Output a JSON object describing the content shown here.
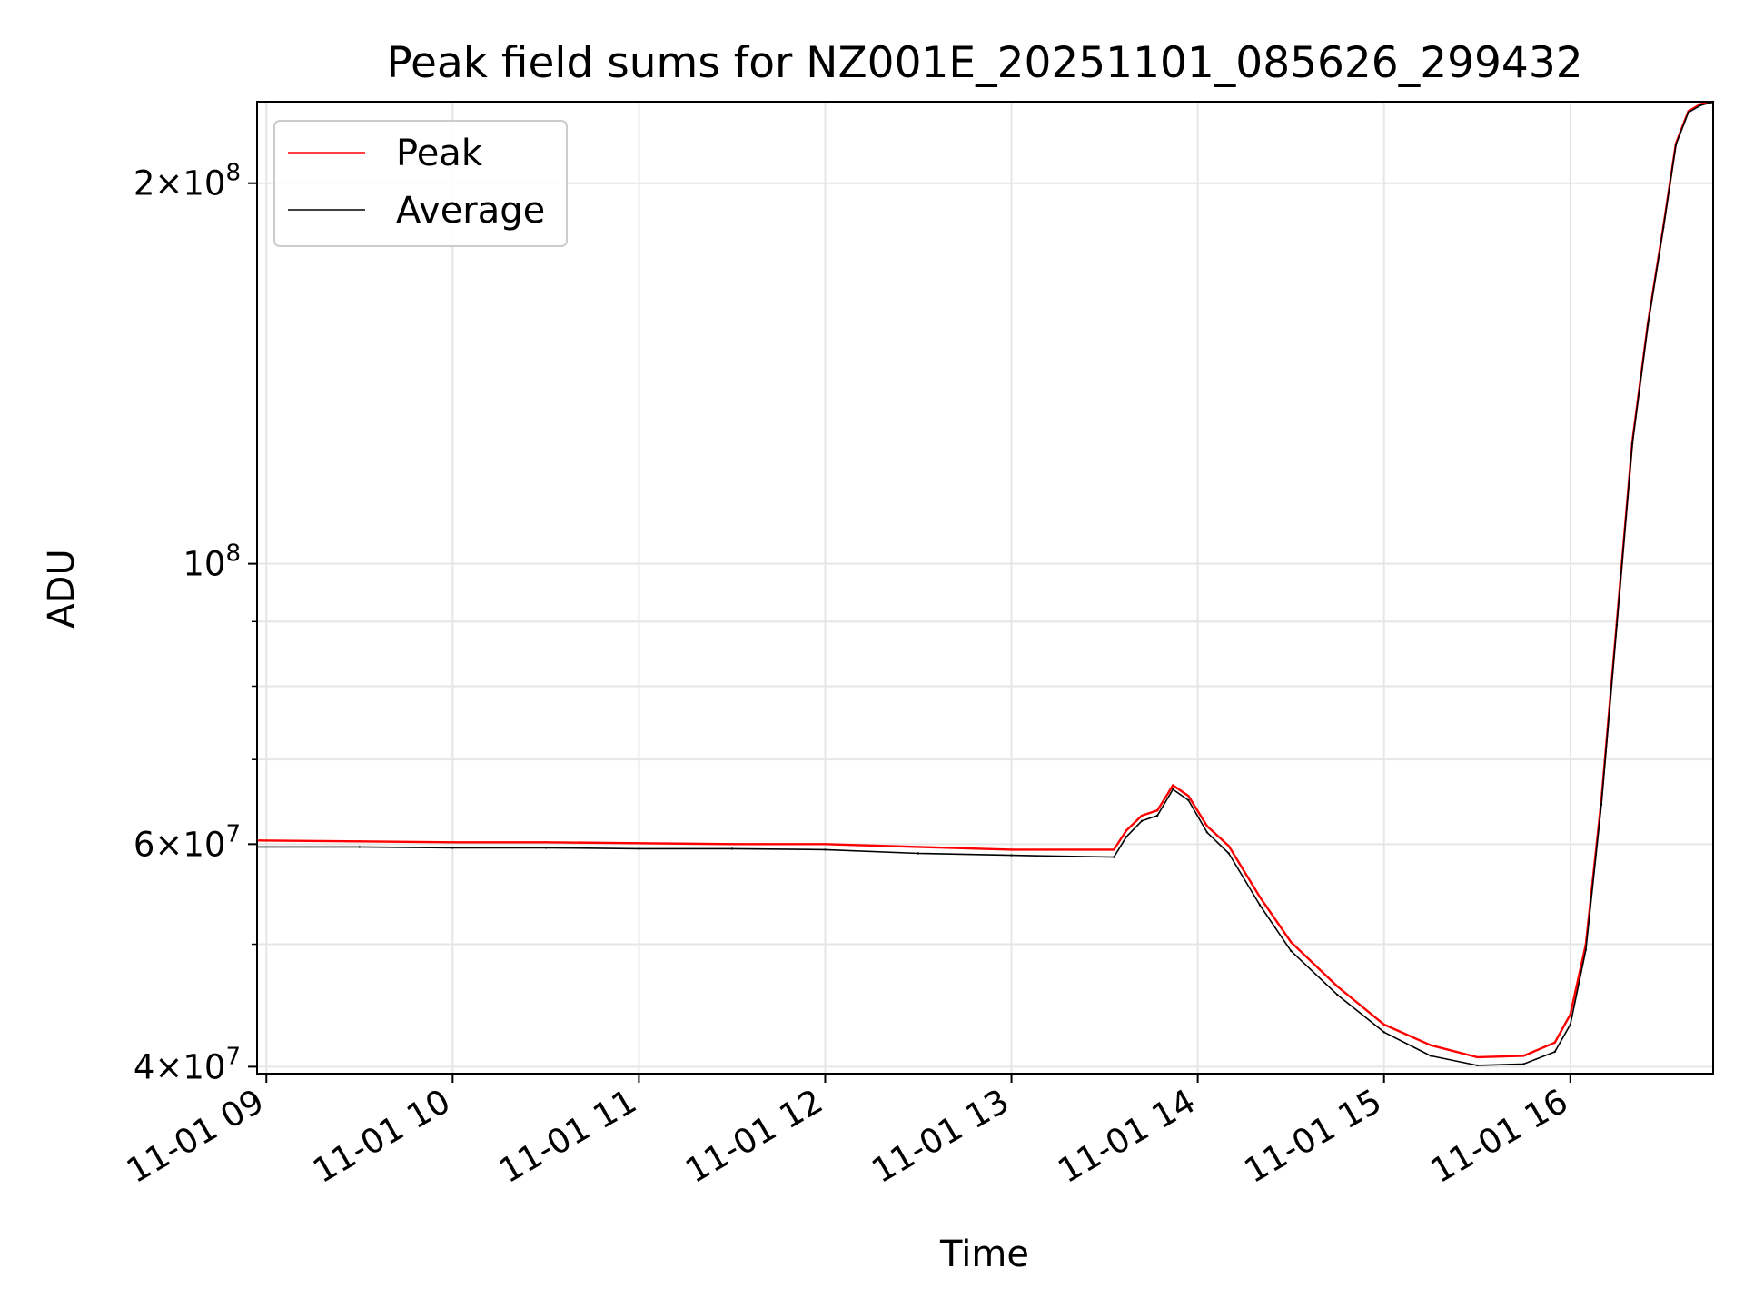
{
  "chart_data": {
    "type": "line",
    "title": "Peak field sums for NZ001E_20251101_085626_299432",
    "xlabel": "Time",
    "ylabel": "ADU",
    "y_scale": "log",
    "ylim": [
      39500000,
      232000000
    ],
    "xlim": [
      "2025-11-01 08:57",
      "2025-11-01 16:46"
    ],
    "grid": true,
    "legend_position": "upper-left",
    "x_ticks": [
      {
        "t": "2025-11-01 09:00",
        "label": "11-01 09"
      },
      {
        "t": "2025-11-01 10:00",
        "label": "11-01 10"
      },
      {
        "t": "2025-11-01 11:00",
        "label": "11-01 11"
      },
      {
        "t": "2025-11-01 12:00",
        "label": "11-01 12"
      },
      {
        "t": "2025-11-01 13:00",
        "label": "11-01 13"
      },
      {
        "t": "2025-11-01 14:00",
        "label": "11-01 14"
      },
      {
        "t": "2025-11-01 15:00",
        "label": "11-01 15"
      },
      {
        "t": "2025-11-01 16:00",
        "label": "11-01 16"
      }
    ],
    "y_major_ticks": [
      {
        "value": 40000000,
        "mantissa": "4",
        "exponent": "7"
      },
      {
        "value": 60000000,
        "mantissa": "6",
        "exponent": "7"
      },
      {
        "value": 100000000,
        "mantissa": "",
        "exponent": "8"
      },
      {
        "value": 200000000,
        "mantissa": "2",
        "exponent": "8"
      }
    ],
    "y_minor_ticks": [
      50000000,
      70000000,
      80000000,
      90000000
    ],
    "series": [
      {
        "name": "Peak",
        "color": "#ff0000",
        "x": [
          "2025-11-01 08:57",
          "2025-11-01 09:30",
          "2025-11-01 10:00",
          "2025-11-01 10:30",
          "2025-11-01 11:00",
          "2025-11-01 11:30",
          "2025-11-01 12:00",
          "2025-11-01 12:30",
          "2025-11-01 13:00",
          "2025-11-01 13:33",
          "2025-11-01 13:37",
          "2025-11-01 13:42",
          "2025-11-01 13:47",
          "2025-11-01 13:52",
          "2025-11-01 13:57",
          "2025-11-01 14:03",
          "2025-11-01 14:10",
          "2025-11-01 14:20",
          "2025-11-01 14:30",
          "2025-11-01 14:45",
          "2025-11-01 15:00",
          "2025-11-01 15:15",
          "2025-11-01 15:30",
          "2025-11-01 15:45",
          "2025-11-01 15:55",
          "2025-11-01 16:00",
          "2025-11-01 16:05",
          "2025-11-01 16:10",
          "2025-11-01 16:15",
          "2025-11-01 16:20",
          "2025-11-01 16:25",
          "2025-11-01 16:30",
          "2025-11-01 16:34",
          "2025-11-01 16:38",
          "2025-11-01 16:42",
          "2025-11-01 16:46"
        ],
        "values": [
          60400000,
          60300000,
          60200000,
          60200000,
          60100000,
          60000000,
          60000000,
          59700000,
          59400000,
          59400000,
          61500000,
          63200000,
          63800000,
          66800000,
          65500000,
          62000000,
          59800000,
          54500000,
          50200000,
          46300000,
          43200000,
          41600000,
          40700000,
          40800000,
          41800000,
          44000000,
          50000000,
          65000000,
          90000000,
          125000000,
          155000000,
          185000000,
          215000000,
          228000000,
          231000000,
          232000000
        ]
      },
      {
        "name": "Average",
        "color": "#000000",
        "x": [
          "2025-11-01 08:57",
          "2025-11-01 09:30",
          "2025-11-01 10:00",
          "2025-11-01 10:30",
          "2025-11-01 11:00",
          "2025-11-01 11:30",
          "2025-11-01 12:00",
          "2025-11-01 12:30",
          "2025-11-01 13:00",
          "2025-11-01 13:33",
          "2025-11-01 13:37",
          "2025-11-01 13:42",
          "2025-11-01 13:47",
          "2025-11-01 13:52",
          "2025-11-01 13:57",
          "2025-11-01 14:03",
          "2025-11-01 14:10",
          "2025-11-01 14:20",
          "2025-11-01 14:30",
          "2025-11-01 14:45",
          "2025-11-01 15:00",
          "2025-11-01 15:15",
          "2025-11-01 15:30",
          "2025-11-01 15:45",
          "2025-11-01 15:55",
          "2025-11-01 16:00",
          "2025-11-01 16:05",
          "2025-11-01 16:10",
          "2025-11-01 16:15",
          "2025-11-01 16:20",
          "2025-11-01 16:25",
          "2025-11-01 16:30",
          "2025-11-01 16:34",
          "2025-11-01 16:38",
          "2025-11-01 16:42",
          "2025-11-01 16:46"
        ],
        "values": [
          59700000,
          59700000,
          59600000,
          59600000,
          59500000,
          59500000,
          59400000,
          59000000,
          58800000,
          58600000,
          60800000,
          62600000,
          63200000,
          66300000,
          65000000,
          61300000,
          59000000,
          53700000,
          49400000,
          45600000,
          42600000,
          40800000,
          40100000,
          40200000,
          41100000,
          43200000,
          49500000,
          64500000,
          89500000,
          124500000,
          154500000,
          184500000,
          214500000,
          227500000,
          230500000,
          231800000
        ]
      }
    ]
  }
}
